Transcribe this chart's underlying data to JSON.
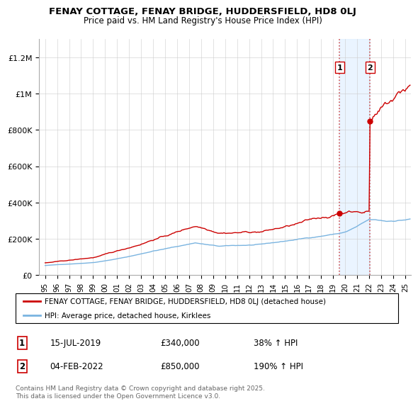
{
  "title": "FENAY COTTAGE, FENAY BRIDGE, HUDDERSFIELD, HD8 0LJ",
  "subtitle": "Price paid vs. HM Land Registry's House Price Index (HPI)",
  "title_fontsize": 9.5,
  "subtitle_fontsize": 8.5,
  "legend_line1": "FENAY COTTAGE, FENAY BRIDGE, HUDDERSFIELD, HD8 0LJ (detached house)",
  "legend_line2": "HPI: Average price, detached house, Kirklees",
  "footnote": "Contains HM Land Registry data © Crown copyright and database right 2025.\nThis data is licensed under the Open Government Licence v3.0.",
  "sale1_label": "1",
  "sale1_date": "15-JUL-2019",
  "sale1_price": "£340,000",
  "sale1_hpi": "38% ↑ HPI",
  "sale1_year": 2019.54,
  "sale1_value": 340000,
  "sale2_label": "2",
  "sale2_date": "04-FEB-2022",
  "sale2_price": "£850,000",
  "sale2_hpi": "190% ↑ HPI",
  "sale2_year": 2022.09,
  "sale2_value": 850000,
  "hpi_color": "#7ab4e0",
  "price_color": "#cc0000",
  "marker_color": "#cc0000",
  "shade_color": "#ddeeff",
  "shade_alpha": 0.6,
  "shade_x1": 2019.54,
  "shade_x2": 2022.09,
  "ylim": [
    0,
    1300000
  ],
  "xlim_start": 1994.5,
  "xlim_end": 2025.5,
  "yticks": [
    0,
    200000,
    400000,
    600000,
    800000,
    1000000,
    1200000
  ],
  "ytick_labels": [
    "£0",
    "£200K",
    "£400K",
    "£600K",
    "£800K",
    "£1M",
    "£1.2M"
  ],
  "xtick_years": [
    1995,
    1996,
    1997,
    1998,
    1999,
    2000,
    2001,
    2002,
    2003,
    2004,
    2005,
    2006,
    2007,
    2008,
    2009,
    2010,
    2011,
    2012,
    2013,
    2014,
    2015,
    2016,
    2017,
    2018,
    2019,
    2020,
    2021,
    2022,
    2023,
    2024,
    2025
  ],
  "xtick_labels": [
    "95",
    "96",
    "97",
    "98",
    "99",
    "00",
    "01",
    "02",
    "03",
    "04",
    "05",
    "06",
    "07",
    "08",
    "09",
    "10",
    "11",
    "12",
    "13",
    "14",
    "15",
    "16",
    "17",
    "18",
    "19",
    "20",
    "21",
    "22",
    "23",
    "24",
    "25"
  ]
}
